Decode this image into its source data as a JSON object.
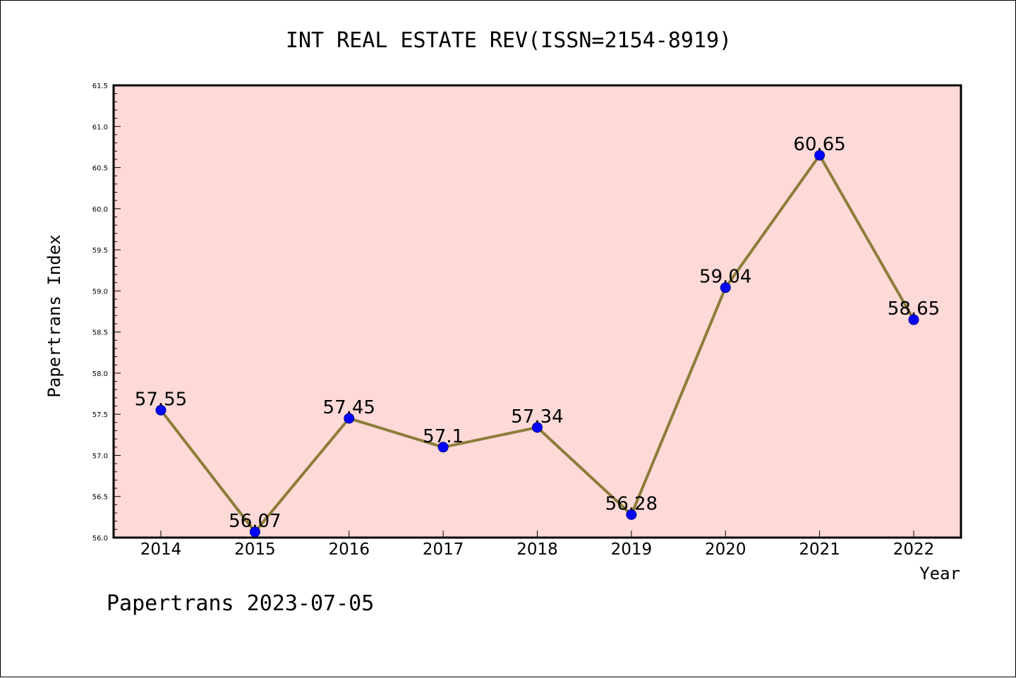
{
  "chart_data": {
    "type": "line",
    "title": "INT REAL ESTATE REV(ISSN=2154-8919)",
    "xlabel": "Year",
    "ylabel": "Papertrans Index",
    "categories": [
      "2014",
      "2015",
      "2016",
      "2017",
      "2018",
      "2019",
      "2020",
      "2021",
      "2022"
    ],
    "series": [
      {
        "values": [
          57.55,
          56.07,
          57.45,
          57.1,
          57.34,
          56.28,
          59.04,
          60.65,
          58.65
        ],
        "labels": [
          "57.55",
          "56.07",
          "57.45",
          "57.1",
          "57.34",
          "56.28",
          "59.04",
          "60.65",
          "58.65"
        ]
      }
    ],
    "ylim": [
      56.0,
      61.5
    ],
    "yticks": [
      "56.0",
      "56.5",
      "57.0",
      "57.5",
      "58.0",
      "58.5",
      "59.0",
      "59.5",
      "60.0",
      "60.5",
      "61.0",
      "61.5"
    ],
    "grid": false,
    "legend": "none"
  },
  "footer": "Papertrans 2023-07-05",
  "colors": {
    "plot_background": "#fdd9d7",
    "line": "#8b7d3a",
    "marker": "#0000ff"
  }
}
